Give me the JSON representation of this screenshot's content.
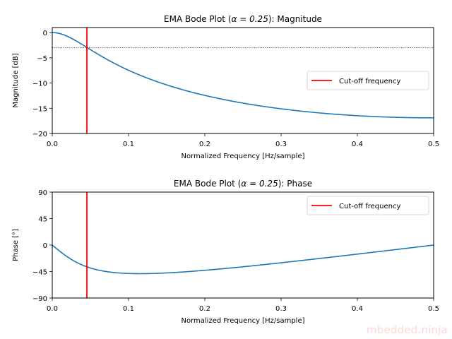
{
  "watermark": "mbedded.ninja",
  "chart_data": [
    {
      "type": "line",
      "title": "EMA Bode Plot (α = 0.25): Magnitude",
      "title_prefix": "EMA Bode Plot (",
      "title_alpha": "α = 0.25",
      "title_suffix": "): Magnitude",
      "xlabel": "Normalized Frequency [Hz/sample]",
      "ylabel": "Magnitude [dB]",
      "xlim": [
        0,
        0.5
      ],
      "ylim": [
        -20,
        1
      ],
      "xticks": [
        0.0,
        0.1,
        0.2,
        0.3,
        0.4,
        0.5
      ],
      "xtick_labels": [
        "0.0",
        "0.1",
        "0.2",
        "0.3",
        "0.4",
        "0.5"
      ],
      "yticks": [
        0,
        -5,
        -10,
        -15,
        -20
      ],
      "ytick_labels": [
        "0",
        "−5",
        "−10",
        "−15",
        "−20"
      ],
      "alpha": 0.25,
      "series": [
        {
          "name": "Magnitude",
          "color": "#1f77b4",
          "x": [
            0,
            0.025,
            0.0454,
            0.05,
            0.075,
            0.1,
            0.15,
            0.2,
            0.25,
            0.3,
            0.35,
            0.4,
            0.45,
            0.5
          ],
          "values": [
            0,
            -1.05,
            -3.01,
            -3.5,
            -5.8,
            -7.6,
            -10.3,
            -12.4,
            -13.9,
            -15.0,
            -15.8,
            -16.4,
            -16.8,
            -16.9
          ]
        }
      ],
      "cutoff_frequency": 0.0454,
      "cutoff_color": "#ff0000",
      "reference_line_db": -3.01,
      "legend": {
        "entries": [
          "Cut-off frequency"
        ],
        "placement": "center-right"
      },
      "grid": false
    },
    {
      "type": "line",
      "title": "EMA Bode Plot (α = 0.25): Phase",
      "title_prefix": "EMA Bode Plot (",
      "title_alpha": "α = 0.25",
      "title_suffix": "): Phase",
      "xlabel": "Normalized Frequency [Hz/sample]",
      "ylabel": "Phase [°]",
      "xlim": [
        0,
        0.5
      ],
      "ylim": [
        -90,
        90
      ],
      "xticks": [
        0.0,
        0.1,
        0.2,
        0.3,
        0.4,
        0.5
      ],
      "xtick_labels": [
        "0.0",
        "0.1",
        "0.2",
        "0.3",
        "0.4",
        "0.5"
      ],
      "yticks": [
        90,
        45,
        0,
        -45,
        -90
      ],
      "ytick_labels": [
        "90",
        "45",
        "0",
        "−45",
        "−90"
      ],
      "alpha": 0.25,
      "series": [
        {
          "name": "Phase",
          "color": "#1f77b4",
          "x": [
            0,
            0.025,
            0.0454,
            0.05,
            0.075,
            0.1,
            0.115,
            0.15,
            0.2,
            0.25,
            0.3,
            0.35,
            0.4,
            0.45,
            0.5
          ],
          "values": [
            0,
            -22.9,
            -35.4,
            -37.3,
            -44.0,
            -46.9,
            -47.2,
            -46.2,
            -42.6,
            -36.9,
            -30.0,
            -22.4,
            -14.6,
            -6.9,
            0
          ]
        }
      ],
      "cutoff_frequency": 0.0454,
      "cutoff_color": "#ff0000",
      "legend": {
        "entries": [
          "Cut-off frequency"
        ],
        "placement": "top-right"
      },
      "grid": false
    }
  ]
}
